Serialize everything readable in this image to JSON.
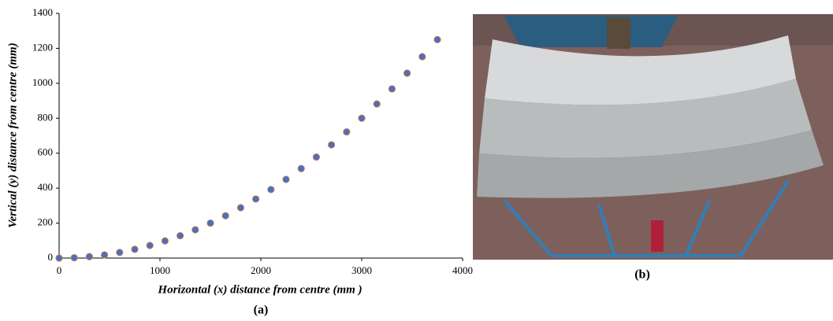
{
  "chart_data": {
    "type": "scatter",
    "x": [
      0,
      150,
      300,
      450,
      600,
      750,
      900,
      1050,
      1200,
      1350,
      1500,
      1650,
      1800,
      1950,
      2100,
      2250,
      2400,
      2550,
      2700,
      2850,
      3000,
      3150,
      3300,
      3450,
      3600,
      3750
    ],
    "series": [
      {
        "color": "#ed7d31",
        "values": [
          0,
          2,
          8,
          18,
          32,
          50,
          72,
          98,
          128,
          162,
          200,
          242,
          288,
          338,
          392,
          450,
          512,
          578,
          648,
          722,
          800,
          882,
          968,
          1058,
          1152,
          1250
        ]
      },
      {
        "color": "#4472c4",
        "values": [
          0,
          2,
          8,
          18,
          32,
          50,
          72,
          98,
          128,
          162,
          200,
          242,
          288,
          338,
          392,
          450,
          512,
          578,
          648,
          722,
          800,
          882,
          968,
          1058,
          1152,
          1250
        ]
      }
    ],
    "xlabel": "Horizontal (x) distance from centre (mm )",
    "ylabel": "Vertical (y) distance from centre (mm)",
    "xlim": [
      0,
      4000
    ],
    "xticks": [
      0,
      1000,
      2000,
      3000,
      4000
    ],
    "ylim": [
      0,
      1400
    ],
    "yticks": [
      0,
      200,
      400,
      600,
      800,
      1000,
      1200,
      1400
    ],
    "grid": false
  },
  "panels": {
    "a": "(a)",
    "b": "(b)"
  }
}
